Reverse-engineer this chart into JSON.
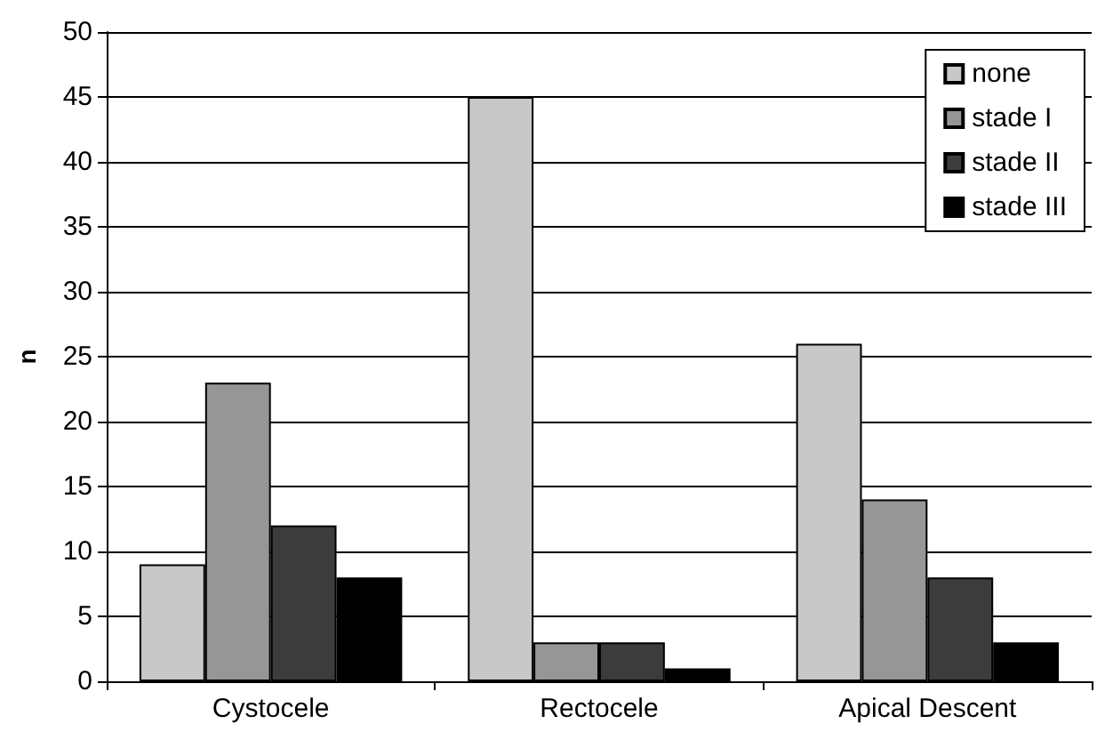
{
  "chart_data": {
    "type": "bar",
    "ylabel": "n",
    "categories": [
      "Cystocele",
      "Rectocele",
      "Apical Descent"
    ],
    "series": [
      {
        "name": "none",
        "color": "#c8c8c8",
        "values": [
          9,
          45,
          26
        ]
      },
      {
        "name": "stade I",
        "color": "#969696",
        "values": [
          23,
          3,
          14
        ]
      },
      {
        "name": "stade II",
        "color": "#3c3c3c",
        "values": [
          12,
          3,
          8
        ]
      },
      {
        "name": "stade III",
        "color": "#000000",
        "values": [
          8,
          1,
          3
        ]
      }
    ],
    "ylim": [
      0,
      50
    ],
    "yticks": [
      0,
      5,
      10,
      15,
      20,
      25,
      30,
      35,
      40,
      45,
      50
    ],
    "grid": "y",
    "legend": "top right"
  }
}
